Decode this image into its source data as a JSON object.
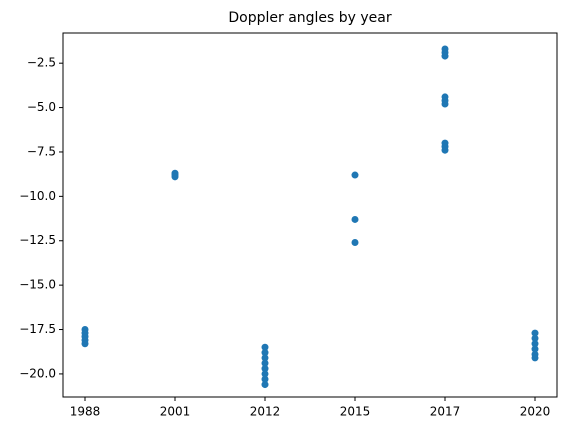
{
  "chart_data": {
    "type": "scatter",
    "title": "Doppler angles by year",
    "categories": [
      "1988",
      "2001",
      "2012",
      "2015",
      "2017",
      "2020"
    ],
    "color": "#1f77b4",
    "x": [
      "1988",
      "1988",
      "1988",
      "1988",
      "1988",
      "2001",
      "2001",
      "2001",
      "2012",
      "2012",
      "2012",
      "2012",
      "2012",
      "2012",
      "2012",
      "2012",
      "2015",
      "2015",
      "2015",
      "2017",
      "2017",
      "2017",
      "2017",
      "2017",
      "2017",
      "2017",
      "2017",
      "2017",
      "2020",
      "2020",
      "2020",
      "2020",
      "2020",
      "2020"
    ],
    "values": [
      -17.5,
      -17.7,
      -17.9,
      -18.1,
      -18.3,
      -8.7,
      -8.8,
      -8.9,
      -18.5,
      -18.8,
      -19.1,
      -19.4,
      -19.7,
      -20.0,
      -20.3,
      -20.6,
      -8.8,
      -11.3,
      -12.6,
      -1.7,
      -1.9,
      -2.1,
      -4.4,
      -4.6,
      -4.8,
      -7.0,
      -7.2,
      -7.4,
      -17.7,
      -18.0,
      -18.3,
      -18.6,
      -18.9,
      -19.1
    ],
    "ylim": [
      -21.3,
      -0.8
    ],
    "yticks": [
      {
        "value": -20,
        "label": "−20.0"
      },
      {
        "value": -17.5,
        "label": "−17.5"
      },
      {
        "value": -15,
        "label": "−15.0"
      },
      {
        "value": -12.5,
        "label": "−12.5"
      },
      {
        "value": -10,
        "label": "−10.0"
      },
      {
        "value": -7.5,
        "label": "−7.5"
      },
      {
        "value": -5,
        "label": "−5.0"
      },
      {
        "value": -2.5,
        "label": "−2.5"
      }
    ],
    "grid": false
  }
}
